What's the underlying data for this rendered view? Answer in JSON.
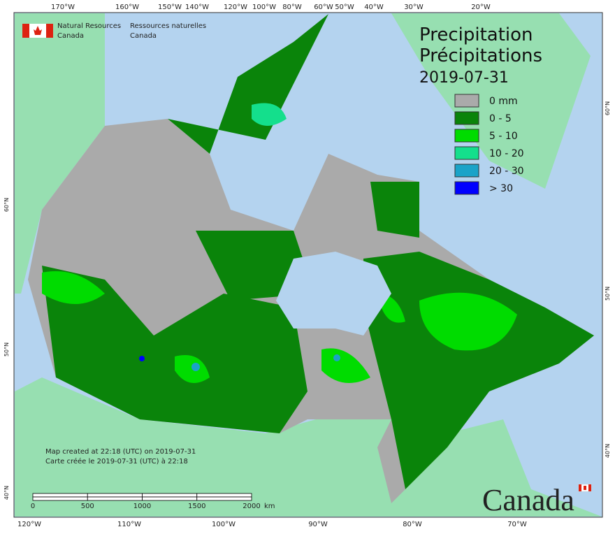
{
  "header": {
    "agency_en": "Natural Resources",
    "country_en": "Canada",
    "agency_fr": "Ressources naturelles",
    "country_fr": "Canada"
  },
  "title": {
    "line1": "Precipitation",
    "line2": "Précipitations",
    "date": "2019-07-31"
  },
  "legend": {
    "items": [
      {
        "label": "0 mm",
        "color": "#aaaaaa"
      },
      {
        "label": "0 - 5",
        "color": "#0a840a"
      },
      {
        "label": "5 - 10",
        "color": "#00dc00"
      },
      {
        "label": "10 - 20",
        "color": "#14df8c"
      },
      {
        "label": "20 - 30",
        "color": "#1aa3c8"
      },
      {
        "label": "> 30",
        "color": "#0000ff"
      }
    ]
  },
  "graticule": {
    "top": [
      "170°W",
      "160°W",
      "150°W",
      "140°W",
      "120°W",
      "100°W",
      "80°W",
      "60°W",
      "50°W",
      "40°W",
      "30°W",
      "20°W"
    ],
    "bottom": [
      "120°W",
      "110°W",
      "100°W",
      "90°W",
      "80°W",
      "70°W"
    ],
    "left": [
      "60°N",
      "50°N",
      "40°N"
    ],
    "right": [
      "60°N",
      "50°N",
      "40°N"
    ]
  },
  "scale_bar": {
    "ticks": [
      0,
      500,
      1000,
      1500,
      2000
    ],
    "unit": "km"
  },
  "credits": {
    "en": "Map created at 22:18 (UTC) on 2019-07-31",
    "fr": "Carte créée le 2019-07-31 (UTC) à 22:18"
  },
  "wordmark": "Canada"
}
